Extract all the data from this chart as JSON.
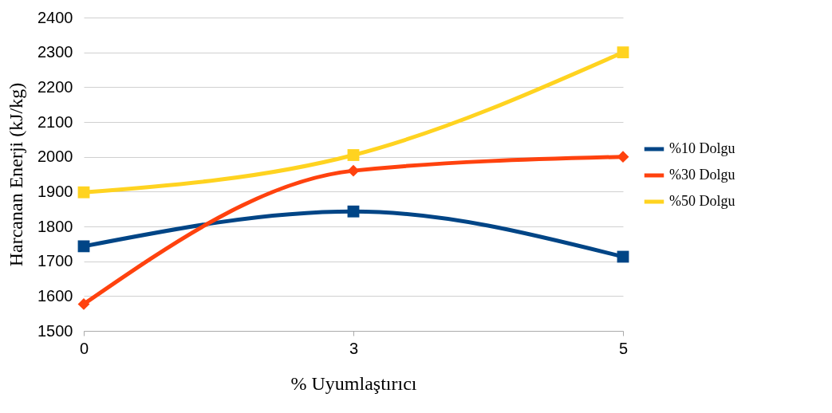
{
  "chart_data": {
    "type": "line",
    "xlabel": "% Uyumlaştırıcı",
    "ylabel": "Harcanan Enerji (kJ/kg)",
    "categories": [
      "0",
      "3",
      "5"
    ],
    "ylim": [
      1500,
      2400
    ],
    "yticks": [
      1500,
      1600,
      1700,
      1800,
      1900,
      2000,
      2100,
      2200,
      2300,
      2400
    ],
    "grid": "y",
    "legend": "right",
    "line_style": "solid",
    "series": [
      {
        "name": "%10 Dolgu",
        "color": "#004586",
        "marker": "square",
        "values": [
          1743,
          1843,
          1713
        ]
      },
      {
        "name": "%30 Dolgu",
        "color": "#ff420e",
        "marker": "diamond",
        "values": [
          1577,
          1960,
          2000
        ]
      },
      {
        "name": "%50 Dolgu",
        "color": "#ffd320",
        "marker": "square",
        "values": [
          1898,
          2005,
          2300
        ]
      }
    ]
  }
}
